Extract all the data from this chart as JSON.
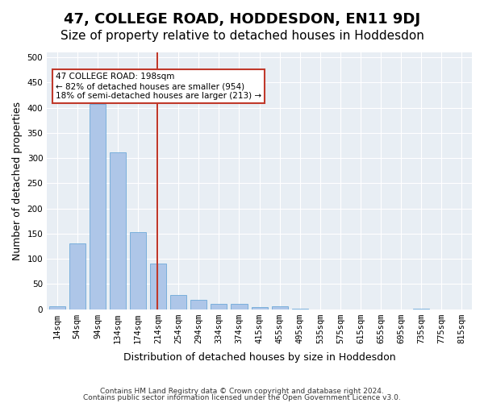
{
  "title": "47, COLLEGE ROAD, HODDESDON, EN11 9DJ",
  "subtitle": "Size of property relative to detached houses in Hoddesdon",
  "xlabel": "Distribution of detached houses by size in Hoddesdon",
  "ylabel": "Number of detached properties",
  "footnote1": "Contains HM Land Registry data © Crown copyright and database right 2024.",
  "footnote2": "Contains public sector information licensed under the Open Government Licence v3.0.",
  "bar_labels": [
    "14sqm",
    "54sqm",
    "94sqm",
    "134sqm",
    "174sqm",
    "214sqm",
    "254sqm",
    "294sqm",
    "334sqm",
    "374sqm",
    "415sqm",
    "455sqm",
    "495sqm",
    "535sqm",
    "575sqm",
    "615sqm",
    "655sqm",
    "695sqm",
    "735sqm",
    "775sqm",
    "815sqm"
  ],
  "bar_values": [
    5,
    130,
    407,
    311,
    153,
    90,
    28,
    19,
    10,
    11,
    4,
    5,
    1,
    0,
    0,
    0,
    0,
    0,
    1,
    0,
    0
  ],
  "bar_color": "#aec6e8",
  "bar_edge_color": "#5a9fd4",
  "vline_x": 4.96,
  "vline_color": "#c0392b",
  "annotation_text": "47 COLLEGE ROAD: 198sqm\n← 82% of detached houses are smaller (954)\n18% of semi-detached houses are larger (213) →",
  "annotation_box_color": "white",
  "annotation_box_edge": "#c0392b",
  "ylim": [
    0,
    510
  ],
  "yticks": [
    0,
    50,
    100,
    150,
    200,
    250,
    300,
    350,
    400,
    450,
    500
  ],
  "background_color": "#e8eef4",
  "grid_color": "white",
  "title_fontsize": 13,
  "subtitle_fontsize": 11,
  "label_fontsize": 9,
  "tick_fontsize": 7.5
}
